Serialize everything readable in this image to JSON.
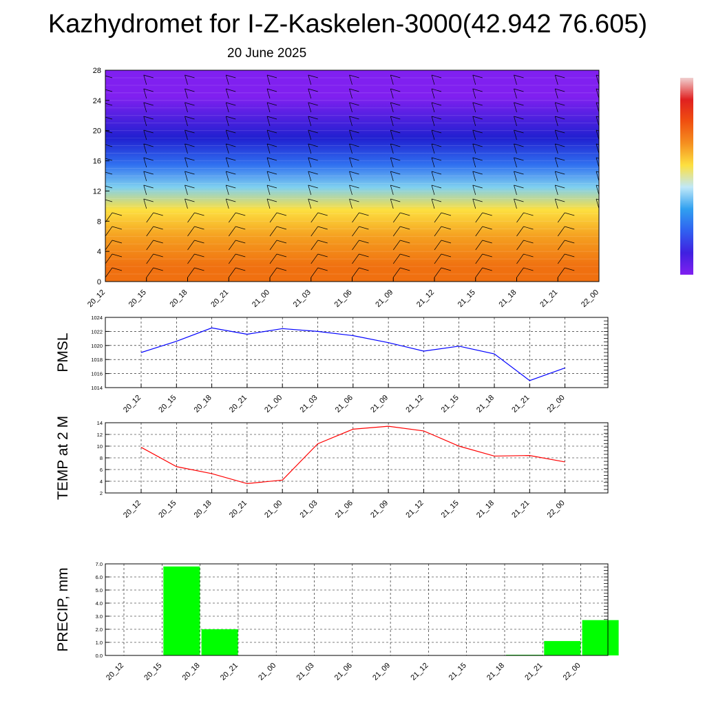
{
  "title": "Kazhydromet for I-Z-Kaskelen-3000(42.942 76.605)",
  "subtitle": "20 June 2025",
  "time_labels": [
    "20_12",
    "20_15",
    "20_18",
    "20_21",
    "21_00",
    "21_03",
    "21_06",
    "21_09",
    "21_12",
    "21_15",
    "21_18",
    "21_21",
    "22_00"
  ],
  "colors": {
    "pmsl_line": "#0000ff",
    "temp_line": "#ff0000",
    "precip_bar": "#00ff00"
  },
  "chart_data": [
    {
      "type": "heatmap",
      "title": "",
      "xlabel": "",
      "ylabel": "",
      "x": [
        "20_12",
        "20_15",
        "20_18",
        "20_21",
        "21_00",
        "21_03",
        "21_06",
        "21_09",
        "21_12",
        "21_15",
        "21_18",
        "21_21",
        "22_00"
      ],
      "ylim": [
        0,
        28
      ],
      "yticks": [
        0,
        4,
        8,
        12,
        16,
        20,
        24,
        28
      ],
      "ytick_labels": [
        "0",
        "4",
        "8",
        "12",
        "16",
        "20",
        "24",
        "28"
      ],
      "color_bands": [
        {
          "from": 0,
          "to": 4,
          "color": "#f07010"
        },
        {
          "from": 4,
          "to": 8,
          "color": "#f5a020"
        },
        {
          "from": 8,
          "to": 11,
          "color": "#fde040"
        },
        {
          "from": 11,
          "to": 14,
          "color": "#7fd0f0"
        },
        {
          "from": 14,
          "to": 17,
          "color": "#3070f0"
        },
        {
          "from": 17,
          "to": 21,
          "color": "#2020d0"
        },
        {
          "from": 21,
          "to": 28,
          "color": "#8020f0"
        }
      ],
      "overlay": "wind barbs",
      "colorbar_colors": [
        "#f0d0d0",
        "#e02020",
        "#f05010",
        "#f59020",
        "#fde040",
        "#c0e8f8",
        "#30a0f0",
        "#3060f0",
        "#4020e0",
        "#8020f0"
      ]
    },
    {
      "type": "line",
      "ylabel": "PMSL",
      "x": [
        "20_12",
        "20_15",
        "20_18",
        "20_21",
        "21_00",
        "21_03",
        "21_06",
        "21_09",
        "21_12",
        "21_15",
        "21_18",
        "21_21",
        "22_00"
      ],
      "ylim": [
        1014,
        1024
      ],
      "yticks": [
        1014,
        1016,
        1018,
        1020,
        1022,
        1024
      ],
      "ytick_labels": [
        "1014",
        "1016",
        "1018",
        "1020",
        "1022",
        "1024"
      ],
      "grid": true,
      "series": [
        {
          "values": [
            1019.0,
            1020.6,
            1022.5,
            1021.6,
            1022.4,
            1022.0,
            1021.4,
            1020.4,
            1019.2,
            1019.9,
            1018.8,
            1015.0,
            1016.8
          ]
        }
      ]
    },
    {
      "type": "line",
      "ylabel": "TEMP at 2 M",
      "x": [
        "20_12",
        "20_15",
        "20_18",
        "20_21",
        "21_00",
        "21_03",
        "21_06",
        "21_09",
        "21_12",
        "21_15",
        "21_18",
        "21_21",
        "22_00"
      ],
      "ylim": [
        2,
        14
      ],
      "yticks": [
        2,
        4,
        6,
        8,
        10,
        12,
        14
      ],
      "ytick_labels": [
        "2",
        "4",
        "6",
        "8",
        "10",
        "12",
        "14"
      ],
      "grid": true,
      "series": [
        {
          "values": [
            9.8,
            6.5,
            5.3,
            3.6,
            4.2,
            10.4,
            12.9,
            13.4,
            12.6,
            10.0,
            8.3,
            8.4,
            7.3
          ]
        }
      ]
    },
    {
      "type": "bar",
      "ylabel": "PRECIP, mm",
      "categories": [
        "20_12",
        "20_15",
        "20_18",
        "20_21",
        "21_00",
        "21_03",
        "21_06",
        "21_09",
        "21_12",
        "21_15",
        "21_18",
        "21_21",
        "22_00"
      ],
      "values": [
        0,
        6.8,
        2.0,
        0,
        0,
        0,
        0,
        0,
        0,
        0,
        0.05,
        1.1,
        2.7
      ],
      "ylim": [
        0,
        7
      ],
      "yticks": [
        0,
        1,
        2,
        3,
        4,
        5,
        6,
        7
      ],
      "ytick_labels": [
        "0.0",
        "1.0",
        "2.0",
        "3.0",
        "4.0",
        "5.0",
        "6.0",
        "7.0"
      ],
      "grid": true
    }
  ]
}
